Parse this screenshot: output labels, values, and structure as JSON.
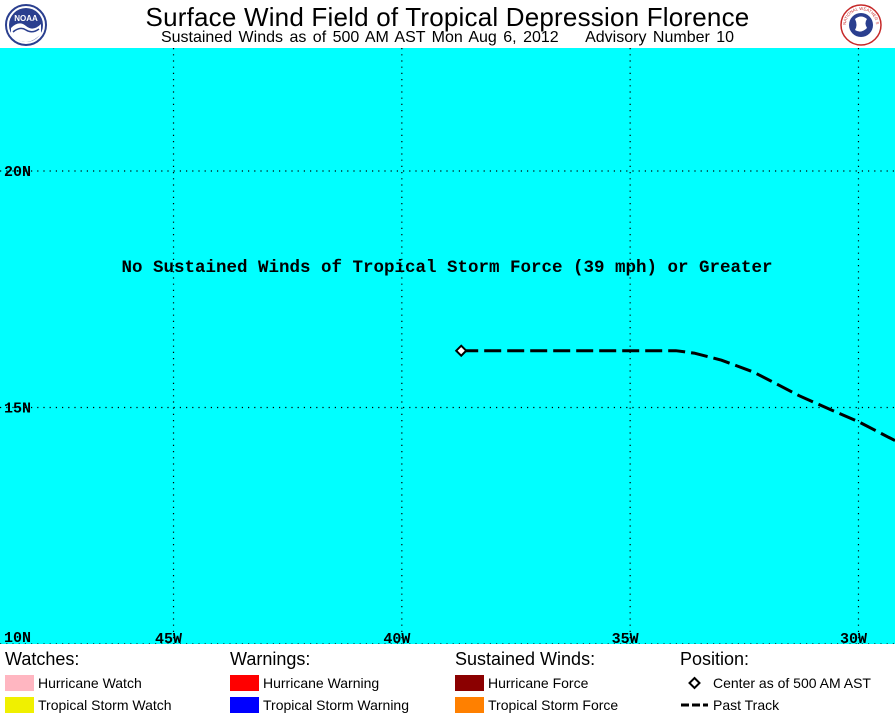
{
  "header": {
    "title": "Surface Wind Field of Tropical Depression Florence",
    "subtitle_main": "Sustained Winds as of 500 AM AST Mon Aug 6, 2012",
    "subtitle_advisory": "Advisory Number 10",
    "left_logo": {
      "icon": "noaa-logo-icon",
      "text": "NOAA"
    },
    "right_logo": {
      "icon": "national-weather-service-logo-icon",
      "text": "NATIONAL WEATHER SERVICE"
    }
  },
  "map": {
    "ocean_color": "#00ffff",
    "message": "No Sustained Winds of Tropical Storm Force (39 mph) or Greater",
    "lon_range_west": [
      48.8,
      29.2
    ],
    "lat_range_north": [
      10,
      22.6
    ],
    "lat_labels": [
      {
        "lat": 20,
        "label": "20N"
      },
      {
        "lat": 15,
        "label": "15N"
      },
      {
        "lat": 10,
        "label": "10N"
      }
    ],
    "lon_labels": [
      {
        "lon": 45,
        "label": "45W"
      },
      {
        "lon": 40,
        "label": "40W"
      },
      {
        "lon": 35,
        "label": "35W"
      },
      {
        "lon": 30,
        "label": "30W"
      }
    ],
    "center": {
      "lon": 38.7,
      "lat": 16.2
    },
    "past_track": [
      {
        "lon": 38.7,
        "lat": 16.2
      },
      {
        "lon": 34.5,
        "lat": 16.2
      },
      {
        "lon": 34.0,
        "lat": 16.2
      },
      {
        "lon": 33.6,
        "lat": 16.15
      },
      {
        "lon": 33.0,
        "lat": 16.0
      },
      {
        "lon": 32.3,
        "lat": 15.75
      },
      {
        "lon": 31.8,
        "lat": 15.5
      },
      {
        "lon": 31.3,
        "lat": 15.25
      },
      {
        "lon": 30.6,
        "lat": 14.95
      },
      {
        "lon": 30.0,
        "lat": 14.7
      },
      {
        "lon": 29.5,
        "lat": 14.45
      },
      {
        "lon": 29.2,
        "lat": 14.3
      }
    ]
  },
  "legend": {
    "watches": {
      "heading": "Watches:",
      "items": [
        {
          "label": "Hurricane Watch",
          "color": "#ffb6c1"
        },
        {
          "label": "Tropical Storm Watch",
          "color": "#f0f000"
        }
      ]
    },
    "warnings": {
      "heading": "Warnings:",
      "items": [
        {
          "label": "Hurricane Warning",
          "color": "#ff0000"
        },
        {
          "label": "Tropical Storm Warning",
          "color": "#0000ff"
        }
      ]
    },
    "winds": {
      "heading": "Sustained Winds:",
      "items": [
        {
          "label": "Hurricane Force",
          "color": "#8b0000"
        },
        {
          "label": "Tropical Storm Force",
          "color": "#ff8000"
        }
      ]
    },
    "position": {
      "heading": "Position:",
      "items": [
        {
          "label": "Center as of 500 AM AST",
          "icon": "diamond-icon"
        },
        {
          "label": "Past Track",
          "icon": "dashed-line-icon"
        }
      ]
    }
  }
}
